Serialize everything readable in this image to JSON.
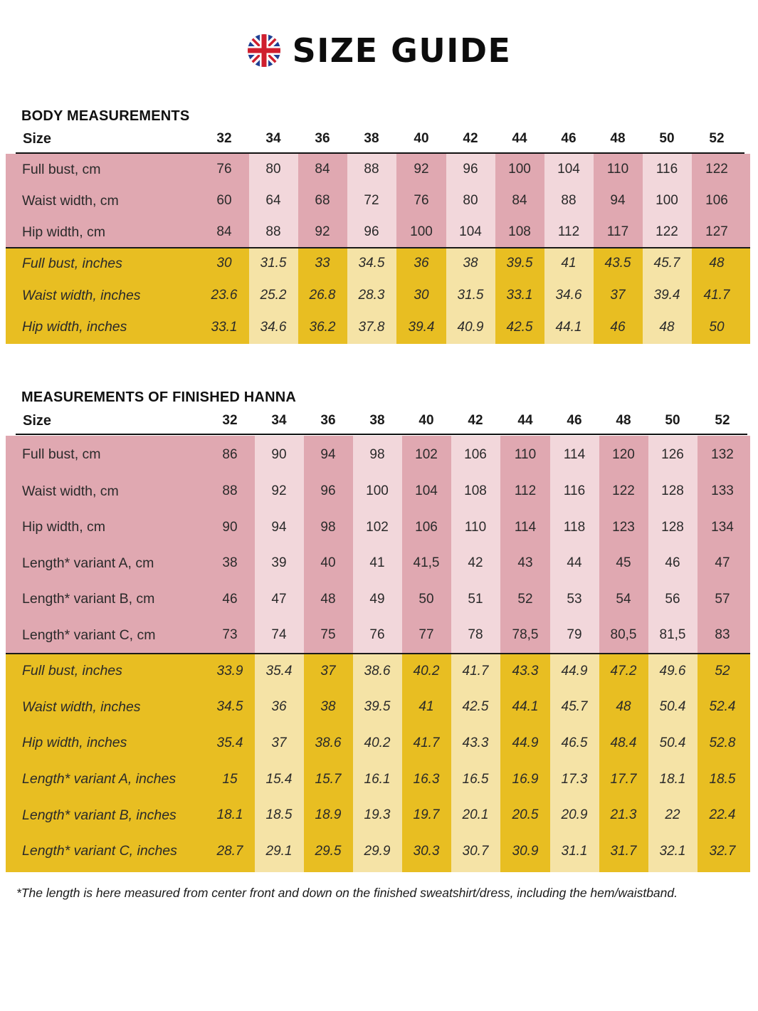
{
  "header": {
    "title": "SIZE GUIDE",
    "flag_icon": "uk-flag-icon"
  },
  "colors": {
    "pink_dark": "#e0a8b1",
    "pink_light": "#f2d7db",
    "yellow_dark": "#e8be22",
    "yellow_light": "#f5e3a6"
  },
  "body_measurements": {
    "title": "BODY MEASUREMENTS",
    "size_label": "Size",
    "sizes": [
      "32",
      "34",
      "36",
      "38",
      "40",
      "42",
      "44",
      "46",
      "48",
      "50",
      "52"
    ],
    "cm_rows": [
      {
        "label": "Full bust, cm",
        "values": [
          "76",
          "80",
          "84",
          "88",
          "92",
          "96",
          "100",
          "104",
          "110",
          "116",
          "122"
        ]
      },
      {
        "label": "Waist width, cm",
        "values": [
          "60",
          "64",
          "68",
          "72",
          "76",
          "80",
          "84",
          "88",
          "94",
          "100",
          "106"
        ]
      },
      {
        "label": "Hip width, cm",
        "values": [
          "84",
          "88",
          "92",
          "96",
          "100",
          "104",
          "108",
          "112",
          "117",
          "122",
          "127"
        ]
      }
    ],
    "inch_rows": [
      {
        "label": "Full bust, inches",
        "values": [
          "30",
          "31.5",
          "33",
          "34.5",
          "36",
          "38",
          "39.5",
          "41",
          "43.5",
          "45.7",
          "48"
        ]
      },
      {
        "label": "Waist width, inches",
        "values": [
          "23.6",
          "25.2",
          "26.8",
          "28.3",
          "30",
          "31.5",
          "33.1",
          "34.6",
          "37",
          "39.4",
          "41.7"
        ]
      },
      {
        "label": "Hip width, inches",
        "values": [
          "33.1",
          "34.6",
          "36.2",
          "37.8",
          "39.4",
          "40.9",
          "42.5",
          "44.1",
          "46",
          "48",
          "50"
        ]
      }
    ]
  },
  "finished_measurements": {
    "title": "MEASUREMENTS OF FINISHED HANNA",
    "size_label": "Size",
    "sizes": [
      "32",
      "34",
      "36",
      "38",
      "40",
      "42",
      "44",
      "46",
      "48",
      "50",
      "52"
    ],
    "cm_rows": [
      {
        "label": "Full bust, cm",
        "values": [
          "86",
          "90",
          "94",
          "98",
          "102",
          "106",
          "110",
          "114",
          "120",
          "126",
          "132"
        ]
      },
      {
        "label": "Waist width, cm",
        "values": [
          "88",
          "92",
          "96",
          "100",
          "104",
          "108",
          "112",
          "116",
          "122",
          "128",
          "133"
        ]
      },
      {
        "label": "Hip width, cm",
        "values": [
          "90",
          "94",
          "98",
          "102",
          "106",
          "110",
          "114",
          "118",
          "123",
          "128",
          "134"
        ]
      },
      {
        "label": "Length* variant A, cm",
        "values": [
          "38",
          "39",
          "40",
          "41",
          "41,5",
          "42",
          "43",
          "44",
          "45",
          "46",
          "47"
        ]
      },
      {
        "label": "Length* variant B, cm",
        "values": [
          "46",
          "47",
          "48",
          "49",
          "50",
          "51",
          "52",
          "53",
          "54",
          "56",
          "57"
        ]
      },
      {
        "label": "Length* variant C, cm",
        "values": [
          "73",
          "74",
          "75",
          "76",
          "77",
          "78",
          "78,5",
          "79",
          "80,5",
          "81,5",
          "83"
        ]
      }
    ],
    "inch_rows": [
      {
        "label": "Full bust, inches",
        "values": [
          "33.9",
          "35.4",
          "37",
          "38.6",
          "40.2",
          "41.7",
          "43.3",
          "44.9",
          "47.2",
          "49.6",
          "52"
        ]
      },
      {
        "label": "Waist width, inches",
        "values": [
          "34.5",
          "36",
          "38",
          "39.5",
          "41",
          "42.5",
          "44.1",
          "45.7",
          "48",
          "50.4",
          "52.4"
        ]
      },
      {
        "label": "Hip width, inches",
        "values": [
          "35.4",
          "37",
          "38.6",
          "40.2",
          "41.7",
          "43.3",
          "44.9",
          "46.5",
          "48.4",
          "50.4",
          "52.8"
        ]
      },
      {
        "label": "Length* variant A, inches",
        "values": [
          "15",
          "15.4",
          "15.7",
          "16.1",
          "16.3",
          "16.5",
          "16.9",
          "17.3",
          "17.7",
          "18.1",
          "18.5"
        ]
      },
      {
        "label": "Length* variant B, inches",
        "values": [
          "18.1",
          "18.5",
          "18.9",
          "19.3",
          "19.7",
          "20.1",
          "20.5",
          "20.9",
          "21.3",
          "22",
          "22.4"
        ]
      },
      {
        "label": "Length* variant C, inches",
        "values": [
          "28.7",
          "29.1",
          "29.5",
          "29.9",
          "30.3",
          "30.7",
          "30.9",
          "31.1",
          "31.7",
          "32.1",
          "32.7"
        ]
      }
    ]
  },
  "footnote": "*The length is here measured from center front and down on the finished sweatshirt/dress, including the hem/waistband."
}
